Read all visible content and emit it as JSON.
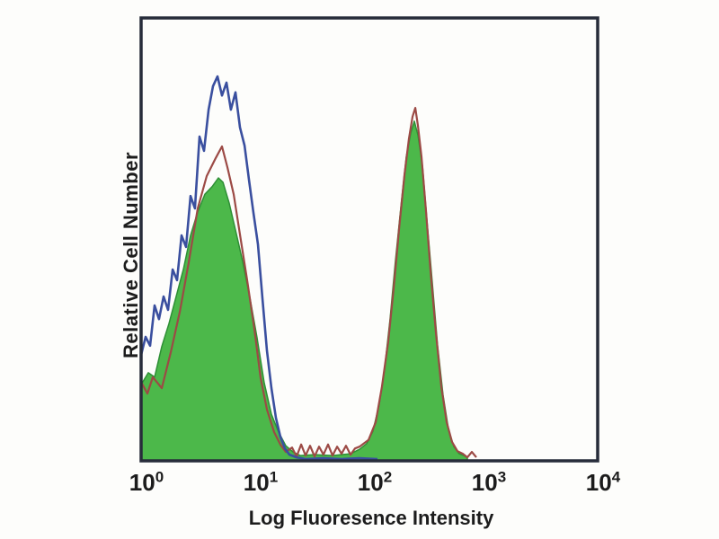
{
  "chart_data": {
    "type": "area",
    "subtype": "flow-cytometry-histogram-overlay",
    "title": "",
    "xlabel": "Log Fluoresence Intensity",
    "ylabel": "Relative Cell Number",
    "x_scale": "log10",
    "xlim_log10": [
      0,
      4
    ],
    "ylim": [
      0,
      1
    ],
    "grid": false,
    "legend": "none",
    "x_ticks": [
      {
        "base": "10",
        "exponent": "0"
      },
      {
        "base": "10",
        "exponent": "1"
      },
      {
        "base": "10",
        "exponent": "2"
      },
      {
        "base": "10",
        "exponent": "3"
      },
      {
        "base": "10",
        "exponent": "4"
      }
    ],
    "colors": {
      "background": "#fdfdfb",
      "frame": "#272c3a",
      "text": "#1c1c1c",
      "green_fill": "#4cb84a",
      "green_edge": "#2e8f35",
      "red_line": "#9c4a45",
      "blue_line": "#3a4f9f"
    },
    "series": [
      {
        "name": "stained-filled-green",
        "style": "filled",
        "color": "#4cb84a",
        "edge_color": "#2e8f35",
        "points_log10x_relheight": [
          [
            0.0,
            0.172
          ],
          [
            0.063,
            0.199
          ],
          [
            0.118,
            0.189
          ],
          [
            0.181,
            0.258
          ],
          [
            0.244,
            0.31
          ],
          [
            0.307,
            0.371
          ],
          [
            0.37,
            0.432
          ],
          [
            0.433,
            0.509
          ],
          [
            0.496,
            0.562
          ],
          [
            0.559,
            0.602
          ],
          [
            0.622,
            0.619
          ],
          [
            0.677,
            0.639
          ],
          [
            0.717,
            0.629
          ],
          [
            0.772,
            0.582
          ],
          [
            0.827,
            0.521
          ],
          [
            0.89,
            0.45
          ],
          [
            0.953,
            0.369
          ],
          [
            1.016,
            0.278
          ],
          [
            1.079,
            0.176
          ],
          [
            1.142,
            0.105
          ],
          [
            1.205,
            0.065
          ],
          [
            1.268,
            0.034
          ],
          [
            1.331,
            0.02
          ],
          [
            1.394,
            0.012
          ],
          [
            1.52,
            0.014
          ],
          [
            1.677,
            0.012
          ],
          [
            1.835,
            0.016
          ],
          [
            1.913,
            0.026
          ],
          [
            1.976,
            0.039
          ],
          [
            2.031,
            0.067
          ],
          [
            2.087,
            0.128
          ],
          [
            2.134,
            0.209
          ],
          [
            2.181,
            0.32
          ],
          [
            2.228,
            0.452
          ],
          [
            2.276,
            0.574
          ],
          [
            2.323,
            0.686
          ],
          [
            2.362,
            0.74
          ],
          [
            2.394,
            0.767
          ],
          [
            2.425,
            0.736
          ],
          [
            2.465,
            0.665
          ],
          [
            2.504,
            0.544
          ],
          [
            2.551,
            0.402
          ],
          [
            2.598,
            0.26
          ],
          [
            2.646,
            0.148
          ],
          [
            2.693,
            0.071
          ],
          [
            2.74,
            0.032
          ],
          [
            2.787,
            0.016
          ],
          [
            2.843,
            0.01
          ],
          [
            2.858,
            0.006
          ]
        ]
      },
      {
        "name": "control-red-outline",
        "style": "line",
        "color": "#9c4a45",
        "points_log10x_relheight": [
          [
            0.0,
            0.178
          ],
          [
            0.055,
            0.152
          ],
          [
            0.102,
            0.189
          ],
          [
            0.181,
            0.164
          ],
          [
            0.26,
            0.245
          ],
          [
            0.339,
            0.337
          ],
          [
            0.417,
            0.448
          ],
          [
            0.496,
            0.57
          ],
          [
            0.575,
            0.643
          ],
          [
            0.654,
            0.684
          ],
          [
            0.709,
            0.71
          ],
          [
            0.756,
            0.663
          ],
          [
            0.811,
            0.602
          ],
          [
            0.866,
            0.511
          ],
          [
            0.929,
            0.408
          ],
          [
            0.992,
            0.298
          ],
          [
            1.047,
            0.187
          ],
          [
            1.102,
            0.116
          ],
          [
            1.165,
            0.065
          ],
          [
            1.22,
            0.037
          ],
          [
            1.268,
            0.02
          ],
          [
            1.323,
            0.03
          ],
          [
            1.362,
            0.01
          ],
          [
            1.402,
            0.037
          ],
          [
            1.441,
            0.012
          ],
          [
            1.48,
            0.034
          ],
          [
            1.52,
            0.01
          ],
          [
            1.559,
            0.032
          ],
          [
            1.598,
            0.014
          ],
          [
            1.638,
            0.037
          ],
          [
            1.677,
            0.012
          ],
          [
            1.717,
            0.032
          ],
          [
            1.756,
            0.016
          ],
          [
            1.795,
            0.034
          ],
          [
            1.835,
            0.014
          ],
          [
            1.874,
            0.028
          ],
          [
            1.913,
            0.032
          ],
          [
            1.992,
            0.047
          ],
          [
            2.055,
            0.087
          ],
          [
            2.11,
            0.168
          ],
          [
            2.165,
            0.27
          ],
          [
            2.213,
            0.391
          ],
          [
            2.26,
            0.523
          ],
          [
            2.307,
            0.645
          ],
          [
            2.346,
            0.726
          ],
          [
            2.378,
            0.777
          ],
          [
            2.402,
            0.797
          ],
          [
            2.425,
            0.757
          ],
          [
            2.457,
            0.686
          ],
          [
            2.496,
            0.564
          ],
          [
            2.535,
            0.432
          ],
          [
            2.583,
            0.29
          ],
          [
            2.63,
            0.168
          ],
          [
            2.677,
            0.087
          ],
          [
            2.724,
            0.043
          ],
          [
            2.772,
            0.022
          ],
          [
            2.819,
            0.016
          ],
          [
            2.858,
            0.008
          ],
          [
            2.898,
            0.02
          ],
          [
            2.937,
            0.008
          ]
        ]
      },
      {
        "name": "control-blue-outline",
        "style": "line",
        "color": "#3a4f9f",
        "points_log10x_relheight": [
          [
            0.0,
            0.239
          ],
          [
            0.039,
            0.28
          ],
          [
            0.079,
            0.26
          ],
          [
            0.118,
            0.351
          ],
          [
            0.157,
            0.32
          ],
          [
            0.197,
            0.371
          ],
          [
            0.236,
            0.341
          ],
          [
            0.276,
            0.432
          ],
          [
            0.315,
            0.408
          ],
          [
            0.354,
            0.509
          ],
          [
            0.394,
            0.483
          ],
          [
            0.433,
            0.598
          ],
          [
            0.472,
            0.57
          ],
          [
            0.512,
            0.732
          ],
          [
            0.551,
            0.7
          ],
          [
            0.591,
            0.793
          ],
          [
            0.63,
            0.846
          ],
          [
            0.669,
            0.868
          ],
          [
            0.709,
            0.825
          ],
          [
            0.748,
            0.854
          ],
          [
            0.787,
            0.793
          ],
          [
            0.827,
            0.832
          ],
          [
            0.866,
            0.753
          ],
          [
            0.906,
            0.712
          ],
          [
            0.945,
            0.635
          ],
          [
            0.984,
            0.56
          ],
          [
            1.024,
            0.489
          ],
          [
            1.063,
            0.367
          ],
          [
            1.102,
            0.249
          ],
          [
            1.142,
            0.164
          ],
          [
            1.181,
            0.097
          ],
          [
            1.22,
            0.055
          ],
          [
            1.26,
            0.028
          ],
          [
            1.299,
            0.014
          ],
          [
            1.362,
            0.008
          ],
          [
            1.441,
            0.004
          ],
          [
            1.598,
            0.006
          ],
          [
            1.756,
            0.004
          ],
          [
            1.913,
            0.006
          ],
          [
            2.071,
            0.004
          ]
        ]
      }
    ]
  }
}
